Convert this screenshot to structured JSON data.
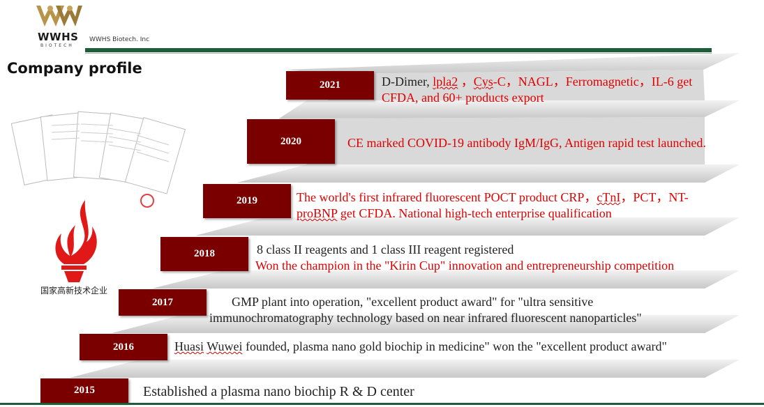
{
  "header": {
    "logo_text": "WWHS",
    "logo_sub": "BIOTECH",
    "company_name": "WWHS Biotech. Inc",
    "page_title": "Company profile"
  },
  "left_panel": {
    "torch_caption": "国家高新技术企业"
  },
  "timeline": [
    {
      "year": "2021",
      "lines": [
        [
          {
            "t": "D-Dimer, ",
            "c": "dark"
          },
          {
            "t": "lpla2",
            "c": "red",
            "u": true
          },
          {
            "t": " ，",
            "c": "red"
          },
          {
            "t": "Cys",
            "c": "red",
            "u": true
          },
          {
            "t": "-C，NAGL，Ferromagnetic，IL-6 get",
            "c": "red"
          }
        ],
        [
          {
            "t": "CFDA, and 60+ products export",
            "c": "red"
          }
        ]
      ]
    },
    {
      "year": "2020",
      "lines": [
        [
          {
            "t": "CE marked COVID-19 antibody IgM/IgG, Antigen rapid test  launched.",
            "c": "red"
          }
        ]
      ]
    },
    {
      "year": "2019",
      "lines": [
        [
          {
            "t": "The world's first infrared fluorescent POCT product CRP，",
            "c": "red"
          },
          {
            "t": "cTnI",
            "c": "red",
            "u": true
          },
          {
            "t": "，PCT，NT-",
            "c": "red"
          }
        ],
        [
          {
            "t": "proBNP",
            "c": "red",
            "u": true
          },
          {
            "t": " get CFDA. National high-tech enterprise qualification",
            "c": "red"
          }
        ]
      ]
    },
    {
      "year": "2018",
      "lines": [
        [
          {
            "t": "8 class II reagents and 1 class III reagent registered",
            "c": "dark"
          }
        ],
        [
          {
            "t": "Won the champion in the \"Kirin Cup\" innovation and entrepreneurship competition",
            "c": "red"
          }
        ]
      ]
    },
    {
      "year": "2017",
      "lines": [
        [
          {
            "t": "GMP plant into operation,  \"excellent product award\" for \"ultra sensitive",
            "c": "dark"
          }
        ],
        [
          {
            "t": "immunochromatography technology based on near infrared fluorescent nanoparticles\"",
            "c": "dark"
          }
        ]
      ]
    },
    {
      "year": "2016",
      "lines": [
        [
          {
            "t": "Huasi",
            "c": "dark",
            "u": true
          },
          {
            "t": " ",
            "c": "dark"
          },
          {
            "t": "Wuwei",
            "c": "dark",
            "u": true
          },
          {
            "t": " founded, plasma nano gold biochip in medicine\" won the \"excellent product award\"",
            "c": "dark"
          }
        ]
      ]
    },
    {
      "year": "2015",
      "lines": [
        [
          {
            "t": "Established a plasma nano biochip R & D center",
            "c": "dark"
          }
        ]
      ]
    }
  ]
}
